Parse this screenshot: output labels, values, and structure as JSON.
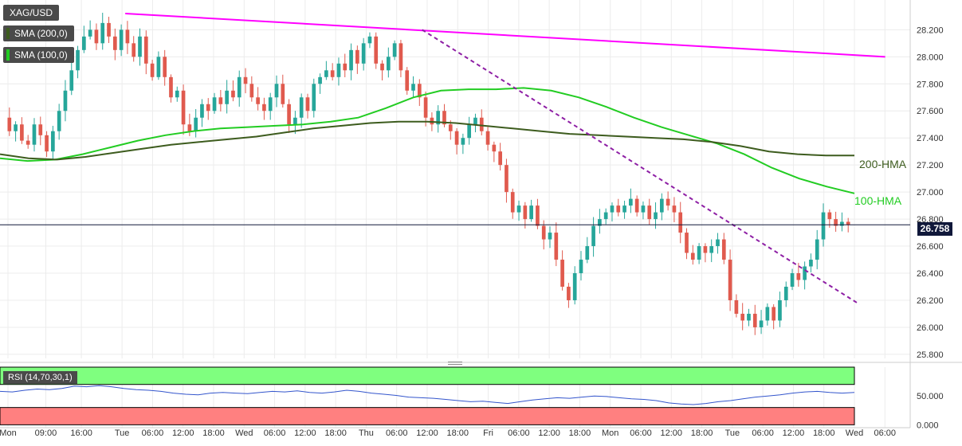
{
  "colors": {
    "bull": "#26a69a",
    "bear": "#e05a4e",
    "grid": "#ececec",
    "axis_text": "#333333",
    "resistance": "#ff00ff",
    "support_trend": "#8e1fa5",
    "hma100": "#22cc22",
    "hma200": "#3d5c1e",
    "price_line": "#10183a",
    "rsi_line": "#3355cc",
    "rsi_overbought_zone": "#7fff7f",
    "rsi_oversold_zone": "#ff8080"
  },
  "legend": {
    "symbol": "XAG/USD",
    "sma200": "SMA (200,0)",
    "sma100": "SMA (100,0)"
  },
  "price_tag": "26.758",
  "rsi_legend": "RSI (14,70,30,1)",
  "chart_data": [
    {
      "type": "candlestick",
      "title": "XAG/USD",
      "y_ticks": [
        "28.200",
        "28.000",
        "27.800",
        "27.600",
        "27.400",
        "27.200",
        "27.000",
        "26.800",
        "26.600",
        "26.400",
        "26.200",
        "26.000",
        "25.800"
      ],
      "ylim": [
        25.77,
        28.42
      ],
      "x_ticks": [
        "Mon",
        "09:00",
        "16:00",
        "Tue",
        "06:00",
        "12:00",
        "18:00",
        "Wed",
        "06:00",
        "12:00",
        "18:00",
        "Thu",
        "06:00",
        "12:00",
        "18:00",
        "Fri",
        "06:00",
        "12:00",
        "18:00",
        "Mon",
        "06:00",
        "12:00",
        "18:00",
        "Tue",
        "06:00",
        "12:00",
        "18:00",
        "Wed",
        "06:00"
      ],
      "grid": true,
      "last_price": 26.758,
      "candles_path": [
        27.55,
        27.45,
        27.5,
        27.38,
        27.35,
        27.5,
        27.42,
        27.3,
        27.45,
        27.6,
        27.75,
        27.9,
        28.05,
        28.15,
        28.2,
        28.1,
        28.25,
        28.15,
        28.05,
        28.2,
        28.1,
        28.0,
        28.15,
        27.95,
        27.85,
        28.0,
        27.85,
        27.7,
        27.75,
        27.5,
        27.45,
        27.55,
        27.65,
        27.6,
        27.7,
        27.65,
        27.75,
        27.7,
        27.85,
        27.8,
        27.7,
        27.65,
        27.6,
        27.7,
        27.8,
        27.65,
        27.5,
        27.55,
        27.7,
        27.6,
        27.8,
        27.85,
        27.9,
        27.85,
        27.95,
        27.9,
        28.05,
        27.95,
        28.1,
        28.15,
        27.95,
        27.9,
        28.0,
        28.1,
        27.9,
        27.75,
        27.8,
        27.7,
        27.55,
        27.5,
        27.6,
        27.5,
        27.45,
        27.35,
        27.4,
        27.5,
        27.55,
        27.45,
        27.35,
        27.3,
        27.2,
        27.0,
        26.85,
        26.9,
        26.8,
        26.9,
        26.75,
        26.65,
        26.7,
        26.5,
        26.3,
        26.2,
        26.4,
        26.5,
        26.6,
        26.75,
        26.8,
        26.85,
        26.9,
        26.85,
        26.9,
        26.95,
        26.85,
        26.9,
        26.8,
        26.85,
        26.95,
        26.9,
        26.85,
        26.7,
        26.55,
        26.5,
        26.6,
        26.55,
        26.6,
        26.65,
        26.5,
        26.2,
        26.1,
        26.05,
        26.1,
        26.0,
        26.05,
        26.15,
        26.05,
        26.2,
        26.3,
        26.4,
        26.35,
        26.45,
        26.5,
        26.65,
        26.85,
        26.8,
        26.75,
        26.78,
        26.758
      ],
      "resistance_line": [
        {
          "x": "Tue 00:00",
          "y": 28.32
        },
        {
          "x": "Wed 07:00",
          "y": 28.0
        }
      ],
      "falling_trend_line": [
        {
          "x": "Thu 11:00",
          "y": 28.2
        },
        {
          "x": "Wed 01:00",
          "y": 26.17
        }
      ],
      "series": [
        {
          "name": "100-HMA",
          "values": [
            27.25,
            27.23,
            27.24,
            27.28,
            27.33,
            27.38,
            27.42,
            27.45,
            27.47,
            27.48,
            27.49,
            27.5,
            27.52,
            27.55,
            27.62,
            27.7,
            27.75,
            27.76,
            27.76,
            27.77,
            27.75,
            27.7,
            27.63,
            27.55,
            27.48,
            27.42,
            27.36,
            27.28,
            27.18,
            27.1,
            27.04,
            26.99
          ]
        },
        {
          "name": "200-HMA",
          "values": [
            27.28,
            27.25,
            27.24,
            27.26,
            27.29,
            27.32,
            27.35,
            27.37,
            27.39,
            27.41,
            27.44,
            27.47,
            27.49,
            27.51,
            27.52,
            27.52,
            27.51,
            27.49,
            27.47,
            27.45,
            27.43,
            27.42,
            27.41,
            27.4,
            27.39,
            27.37,
            27.34,
            27.3,
            27.28,
            27.27,
            27.27
          ]
        }
      ]
    },
    {
      "type": "line",
      "title": "RSI (14,70,30,1)",
      "y_ticks": [
        "50.000",
        "0.000"
      ],
      "ylim": [
        -5,
        100
      ],
      "overbought": 70,
      "oversold": 30,
      "series": [
        {
          "name": "RSI",
          "values": [
            58,
            57,
            60,
            62,
            61,
            63,
            67,
            66,
            68,
            66,
            63,
            61,
            60,
            58,
            55,
            53,
            52,
            55,
            56,
            55,
            54,
            56,
            58,
            57,
            59,
            56,
            55,
            57,
            60,
            58,
            55,
            53,
            51,
            48,
            47,
            46,
            44,
            42,
            40,
            41,
            39,
            37,
            40,
            43,
            45,
            47,
            46,
            48,
            50,
            49,
            47,
            45,
            44,
            42,
            38,
            36,
            35,
            37,
            40,
            42,
            45,
            48,
            50,
            52,
            55,
            57,
            58,
            56,
            55,
            56
          ]
        }
      ]
    }
  ]
}
